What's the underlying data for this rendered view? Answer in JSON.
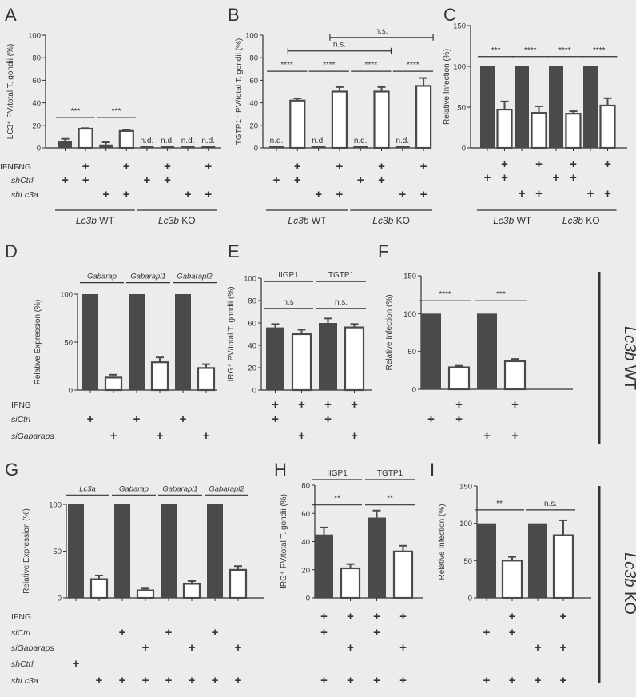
{
  "side_labels": [
    {
      "ital": "Lc3b",
      "rest": " WT"
    },
    {
      "ital": "Lc3b",
      "rest": " KO"
    }
  ],
  "chart_data": [
    {
      "panel": "A",
      "type": "bar",
      "ylabel": "LC3⁺ PV/total T. gondii (%)",
      "ylim": [
        0,
        100
      ],
      "yticks": [
        0,
        20,
        40,
        60,
        80,
        100
      ],
      "values": [
        6,
        17,
        3,
        15,
        null,
        null,
        null,
        null
      ],
      "errors": [
        2,
        0.5,
        2,
        1,
        0,
        0,
        0,
        0
      ],
      "fills": [
        "dark",
        "white",
        "dark",
        "white",
        "dark",
        "white",
        "dark",
        "white"
      ],
      "nd_labels": [
        "n.d.",
        "n.d.",
        "n.d.",
        "n.d."
      ],
      "sig": [
        {
          "a": 0,
          "b": 1,
          "y": 27,
          "label": "***"
        },
        {
          "a": 2,
          "b": 3,
          "y": 27,
          "label": "***"
        }
      ],
      "rows": [
        {
          "label": "IFNG",
          "marks": [
            1,
            3,
            5,
            7
          ]
        },
        {
          "label": "shCtrl",
          "ital": true,
          "marks": [
            0,
            1,
            4,
            5
          ]
        },
        {
          "label": "shLc3a",
          "ital": true,
          "marks": [
            2,
            3,
            6,
            7
          ]
        }
      ],
      "groups": [
        {
          "a": 0,
          "b": 3,
          "ital": "Lc3b",
          "rest": " WT"
        },
        {
          "a": 4,
          "b": 7,
          "ital": "Lc3b",
          "rest": " KO"
        }
      ]
    },
    {
      "panel": "B",
      "type": "bar",
      "ylabel": "TGTP1⁺ PV/total T. gondii (%)",
      "ylim": [
        0,
        100
      ],
      "yticks": [
        0,
        20,
        40,
        60,
        80,
        100
      ],
      "values": [
        null,
        42,
        null,
        50,
        null,
        50,
        null,
        55
      ],
      "errors": [
        0,
        2,
        0,
        4,
        0,
        4,
        0,
        7
      ],
      "fills": [
        "dark",
        "white",
        "dark",
        "white",
        "dark",
        "white",
        "dark",
        "white"
      ],
      "nd_labels": [
        "n.d.",
        "n.d.",
        "n.d.",
        "n.d."
      ],
      "sig": [
        {
          "a": 0,
          "b": 1,
          "y": 68,
          "label": "****"
        },
        {
          "a": 2,
          "b": 3,
          "y": 68,
          "label": "****"
        },
        {
          "a": 4,
          "b": 5,
          "y": 68,
          "label": "****"
        },
        {
          "a": 6,
          "b": 7,
          "y": 68,
          "label": "****"
        },
        {
          "a": 1,
          "b": 5,
          "y": 86,
          "label": "n.s."
        },
        {
          "a": 3,
          "b": 7,
          "y": 98,
          "label": "n.s."
        }
      ],
      "rows": [
        {
          "label": "IFNG",
          "marks": [
            1,
            3,
            5,
            7
          ]
        },
        {
          "label": "",
          "marks": [
            0,
            1,
            4,
            5
          ]
        },
        {
          "label": "",
          "marks": [
            2,
            3,
            6,
            7
          ]
        }
      ],
      "groups": [
        {
          "a": 0,
          "b": 3,
          "ital": "Lc3b",
          "rest": " WT"
        },
        {
          "a": 4,
          "b": 7,
          "ital": "Lc3b",
          "rest": " KO"
        }
      ]
    },
    {
      "panel": "C",
      "type": "bar",
      "ylabel": "Relative Infection (%)",
      "ylim": [
        0,
        150
      ],
      "yticks": [
        0,
        50,
        100,
        150
      ],
      "values": [
        100,
        47,
        100,
        43,
        100,
        42,
        100,
        52
      ],
      "errors": [
        0,
        10,
        0,
        8,
        0,
        3,
        0,
        9
      ],
      "fills": [
        "dark",
        "white",
        "dark",
        "white",
        "dark",
        "white",
        "dark",
        "white"
      ],
      "nd_labels": [],
      "sig": [
        {
          "a": 0,
          "b": 1,
          "y": 112,
          "label": "***"
        },
        {
          "a": 2,
          "b": 3,
          "y": 112,
          "label": "****"
        },
        {
          "a": 4,
          "b": 5,
          "y": 112,
          "label": "****"
        },
        {
          "a": 6,
          "b": 7,
          "y": 112,
          "label": "****"
        }
      ],
      "rows": [
        {
          "label": "",
          "marks": [
            1,
            3,
            5,
            7
          ]
        },
        {
          "label": "",
          "marks": [
            0,
            1,
            4,
            5
          ]
        },
        {
          "label": "",
          "marks": [
            2,
            3,
            6,
            7
          ]
        }
      ],
      "groups": [
        {
          "a": 0,
          "b": 3,
          "ital": "Lc3b",
          "rest": " WT"
        },
        {
          "a": 4,
          "b": 7,
          "ital": "Lc3b",
          "rest": " KO"
        }
      ]
    },
    {
      "panel": "D",
      "type": "bar",
      "ylabel": "Relative Expression (%)",
      "ylim": [
        0,
        100
      ],
      "yticks": [
        0,
        50,
        100
      ],
      "values": [
        100,
        13,
        100,
        29,
        100,
        23
      ],
      "errors": [
        0,
        3,
        0,
        5,
        0,
        4
      ],
      "fills": [
        "dark",
        "white",
        "dark",
        "white",
        "dark",
        "white"
      ],
      "nd_labels": [],
      "sig": [
        {
          "a": 0,
          "b": 1,
          "y": 112,
          "label": "Gabarap",
          "ital": true
        },
        {
          "a": 2,
          "b": 3,
          "y": 112,
          "label": "Gabarapl1",
          "ital": true
        },
        {
          "a": 4,
          "b": 5,
          "y": 112,
          "label": "Gabarapl2",
          "ital": true
        }
      ],
      "rows": [
        {
          "label": "IFNG",
          "marks": []
        },
        {
          "label": "siCtrl",
          "ital": true,
          "marks": [
            0,
            2,
            4
          ]
        },
        {
          "label": "siGabaraps",
          "ital": true,
          "marks": [
            1,
            3,
            5
          ]
        }
      ],
      "groups": []
    },
    {
      "panel": "E",
      "type": "bar",
      "ylabel": "IRG⁺ PV/total T. gondii (%)",
      "ylim": [
        0,
        100
      ],
      "yticks": [
        0,
        20,
        40,
        60,
        80,
        100
      ],
      "values": [
        56,
        50,
        60,
        56
      ],
      "errors": [
        3,
        4,
        4,
        3
      ],
      "fills": [
        "dark",
        "white",
        "dark",
        "white"
      ],
      "nd_labels": [],
      "sig": [
        {
          "a": 0,
          "b": 1,
          "y": 73,
          "label": "n.s"
        },
        {
          "a": 2,
          "b": 3,
          "y": 73,
          "label": "n.s."
        },
        {
          "a": 0,
          "b": 1,
          "y": 97,
          "label": "IIGP1"
        },
        {
          "a": 2,
          "b": 3,
          "y": 97,
          "label": "TGTP1"
        }
      ],
      "rows": [
        {
          "label": "",
          "marks": [
            0,
            1,
            2,
            3
          ]
        },
        {
          "label": "",
          "marks": [
            0,
            2
          ]
        },
        {
          "label": "",
          "marks": [
            1,
            3
          ]
        }
      ],
      "groups": []
    },
    {
      "panel": "F",
      "type": "bar",
      "ylabel": "Relative Infection (%)",
      "ylim": [
        0,
        150
      ],
      "yticks": [
        0,
        50,
        100,
        150
      ],
      "values": [
        100,
        29,
        100,
        37
      ],
      "errors": [
        0,
        2,
        0,
        3
      ],
      "fills": [
        "dark",
        "white",
        "dark",
        "white"
      ],
      "nd_labels": [],
      "sig": [
        {
          "a": 0,
          "b": 1,
          "y": 117,
          "label": "****"
        },
        {
          "a": 2,
          "b": 3,
          "y": 117,
          "label": "***"
        }
      ],
      "rows": [
        {
          "label": "",
          "marks": [
            1,
            3
          ]
        },
        {
          "label": "",
          "marks": [
            0,
            1
          ]
        },
        {
          "label": "",
          "marks": [
            2,
            3
          ]
        }
      ],
      "groups": []
    },
    {
      "panel": "G",
      "type": "bar",
      "ylabel": "Relative Expression (%)",
      "ylim": [
        0,
        100
      ],
      "yticks": [
        0,
        50,
        100
      ],
      "values": [
        100,
        20,
        100,
        8,
        100,
        15,
        100,
        30
      ],
      "errors": [
        0,
        4,
        0,
        2,
        0,
        3,
        0,
        4
      ],
      "fills": [
        "dark",
        "white",
        "dark",
        "white",
        "dark",
        "white",
        "dark",
        "white"
      ],
      "nd_labels": [],
      "sig": [
        {
          "a": 0,
          "b": 1,
          "y": 110,
          "label": "Lc3a",
          "ital": true
        },
        {
          "a": 2,
          "b": 3,
          "y": 110,
          "label": "Gabarap",
          "ital": true
        },
        {
          "a": 4,
          "b": 5,
          "y": 110,
          "label": "Gabarapl1",
          "ital": true
        },
        {
          "a": 6,
          "b": 7,
          "y": 110,
          "label": "Gabarapl2",
          "ital": true
        }
      ],
      "rows": [
        {
          "label": "IFNG",
          "marks": []
        },
        {
          "label": "siCtrl",
          "ital": true,
          "marks": [
            2,
            4,
            6
          ]
        },
        {
          "label": "siGabaraps",
          "ital": true,
          "marks": [
            3,
            5,
            7
          ]
        },
        {
          "label": "shCtrl",
          "ital": true,
          "marks": [
            0
          ]
        },
        {
          "label": "shLc3a",
          "ital": true,
          "marks": [
            1,
            2,
            3,
            4,
            5,
            6,
            7
          ]
        }
      ],
      "groups": []
    },
    {
      "panel": "H",
      "type": "bar",
      "ylabel": "IRG⁺ PV/total T. gondii (%)",
      "ylim": [
        0,
        80
      ],
      "yticks": [
        0,
        20,
        40,
        60,
        80
      ],
      "values": [
        45,
        21,
        57,
        33
      ],
      "errors": [
        5,
        3,
        5,
        4
      ],
      "fills": [
        "dark",
        "white",
        "dark",
        "white"
      ],
      "nd_labels": [],
      "sig": [
        {
          "a": 0,
          "b": 1,
          "y": 66,
          "label": "**"
        },
        {
          "a": 2,
          "b": 3,
          "y": 66,
          "label": "**"
        },
        {
          "a": 0,
          "b": 1,
          "y": 84,
          "label": "IIGP1"
        },
        {
          "a": 2,
          "b": 3,
          "y": 84,
          "label": "TGTP1"
        }
      ],
      "rows": [
        {
          "label": "",
          "marks": [
            0,
            1,
            2,
            3
          ]
        },
        {
          "label": "",
          "marks": [
            0,
            2
          ]
        },
        {
          "label": "",
          "marks": [
            1,
            3
          ]
        },
        {
          "label": "",
          "marks": []
        },
        {
          "label": "",
          "marks": [
            0,
            1,
            2,
            3
          ]
        }
      ],
      "groups": []
    },
    {
      "panel": "I",
      "type": "bar",
      "ylabel": "Relative Infection (%)",
      "ylim": [
        0,
        150
      ],
      "yticks": [
        0,
        50,
        100,
        150
      ],
      "values": [
        100,
        50,
        100,
        84
      ],
      "errors": [
        0,
        5,
        0,
        20
      ],
      "fills": [
        "dark",
        "white",
        "dark",
        "white"
      ],
      "nd_labels": [],
      "sig": [
        {
          "a": 0,
          "b": 1,
          "y": 118,
          "label": "**"
        },
        {
          "a": 2,
          "b": 3,
          "y": 118,
          "label": "n.s."
        }
      ],
      "rows": [
        {
          "label": "",
          "marks": [
            1,
            3
          ]
        },
        {
          "label": "",
          "marks": [
            0,
            1
          ]
        },
        {
          "label": "",
          "marks": [
            2,
            3
          ]
        },
        {
          "label": "",
          "marks": []
        },
        {
          "label": "",
          "marks": [
            0,
            1,
            2,
            3
          ]
        }
      ],
      "groups": []
    }
  ]
}
